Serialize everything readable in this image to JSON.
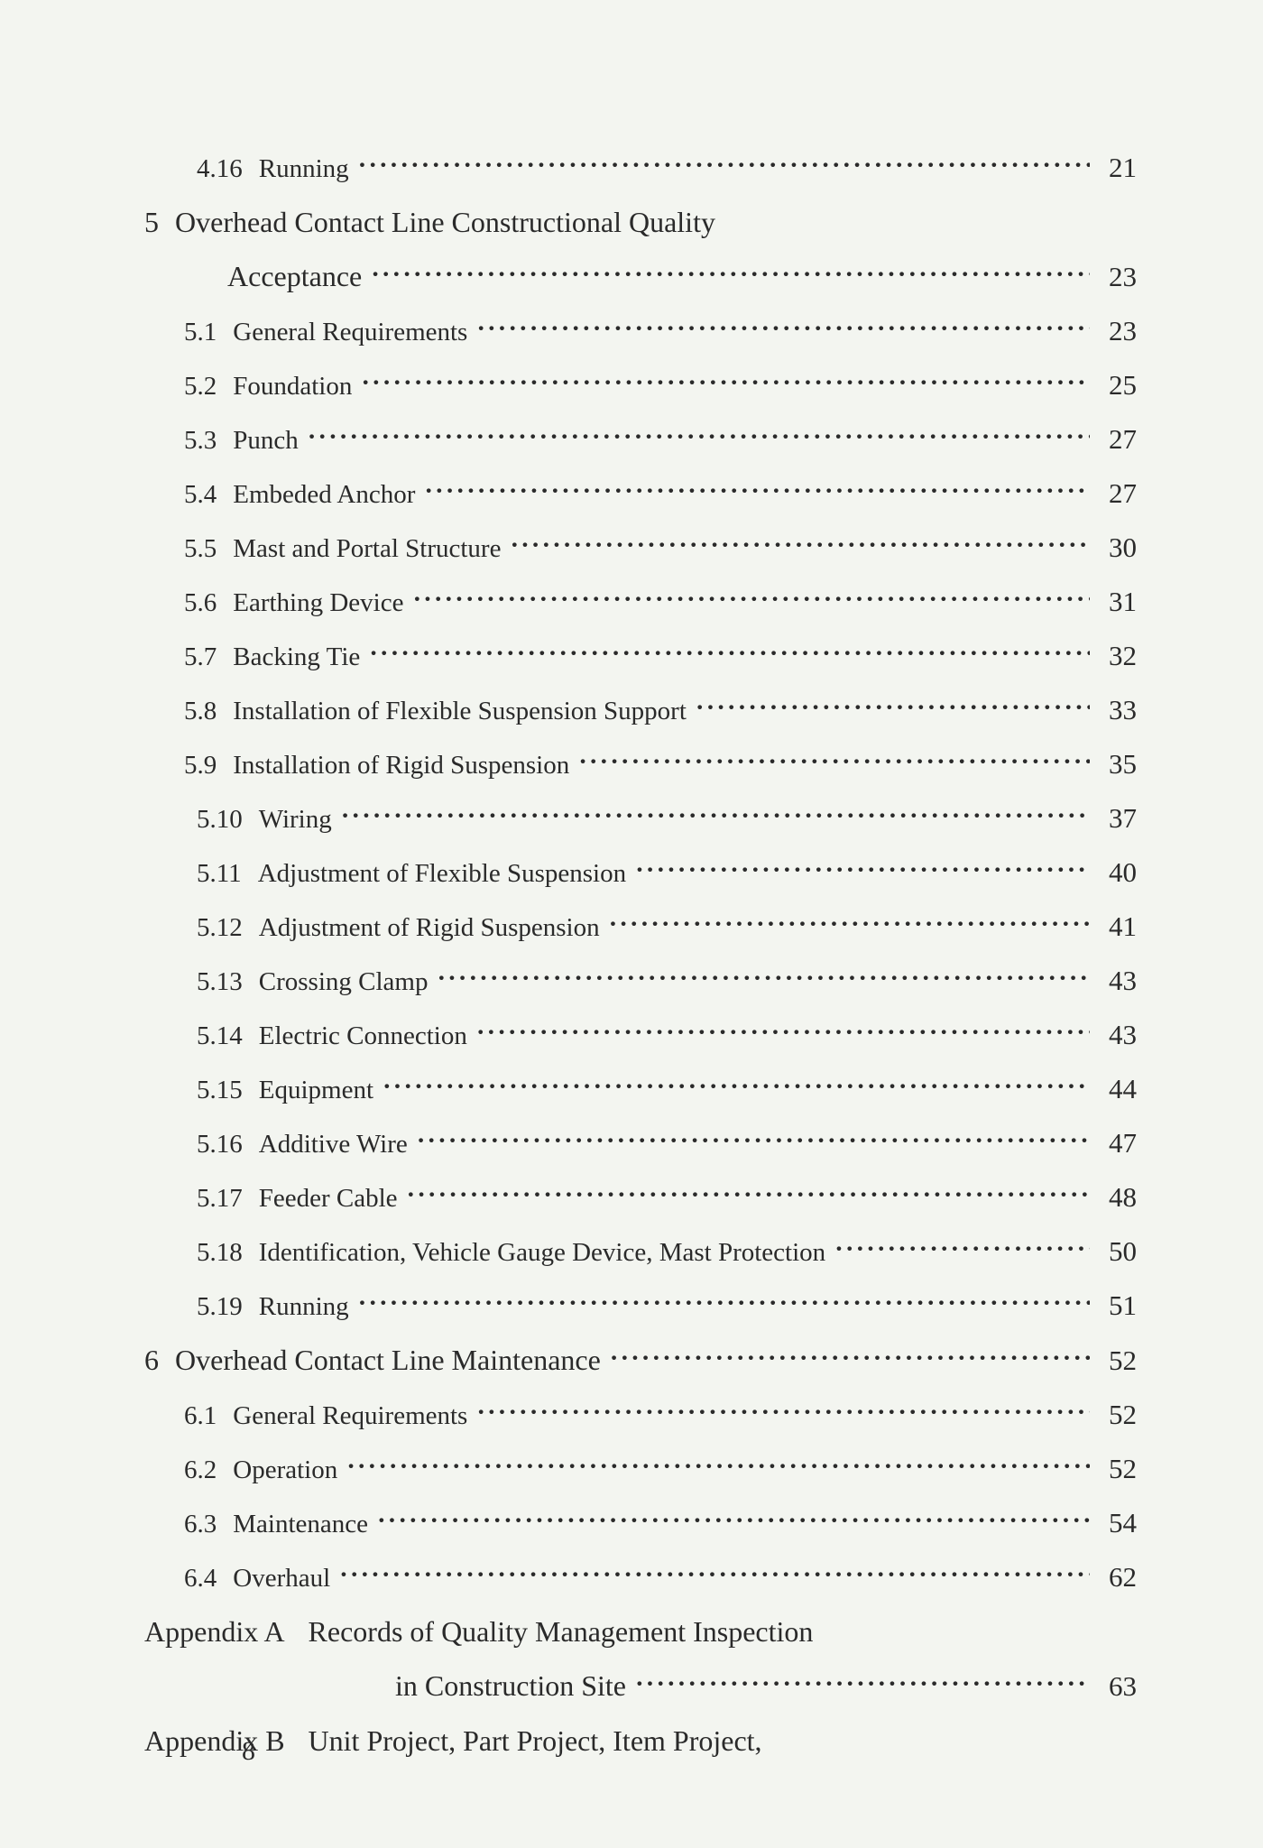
{
  "toc": {
    "rows": [
      {
        "level": 2,
        "num": "4.16",
        "title": "Running",
        "page": "21"
      },
      {
        "level": 0,
        "num": "5",
        "title": "Overhead Contact Line Constructional Quality",
        "noDots": true,
        "noPage": true
      },
      {
        "level": "cont",
        "title": "Acceptance",
        "page": "23",
        "big": true
      },
      {
        "level": 1,
        "num": "5.1",
        "title": "General Requirements",
        "page": "23"
      },
      {
        "level": 1,
        "num": "5.2",
        "title": "Foundation",
        "page": "25"
      },
      {
        "level": 1,
        "num": "5.3",
        "title": "Punch",
        "page": "27"
      },
      {
        "level": 1,
        "num": "5.4",
        "title": "Embeded Anchor",
        "page": "27"
      },
      {
        "level": 1,
        "num": "5.5",
        "title": "Mast and Portal Structure",
        "page": "30"
      },
      {
        "level": 1,
        "num": "5.6",
        "title": "Earthing Device",
        "page": "31"
      },
      {
        "level": 1,
        "num": "5.7",
        "title": "Backing Tie",
        "page": "32"
      },
      {
        "level": 1,
        "num": "5.8",
        "title": "Installation of Flexible Suspension Support",
        "page": "33"
      },
      {
        "level": 1,
        "num": "5.9",
        "title": "Installation of Rigid Suspension",
        "page": "35"
      },
      {
        "level": 2,
        "num": "5.10",
        "title": "Wiring",
        "page": "37"
      },
      {
        "level": 2,
        "num": "5.11",
        "title": "Adjustment of Flexible Suspension",
        "page": "40"
      },
      {
        "level": 2,
        "num": "5.12",
        "title": "Adjustment of Rigid Suspension",
        "page": "41"
      },
      {
        "level": 2,
        "num": "5.13",
        "title": "Crossing Clamp",
        "page": "43"
      },
      {
        "level": 2,
        "num": "5.14",
        "title": "Electric Connection",
        "page": "43"
      },
      {
        "level": 2,
        "num": "5.15",
        "title": "Equipment",
        "page": "44"
      },
      {
        "level": 2,
        "num": "5.16",
        "title": "Additive Wire",
        "page": "47"
      },
      {
        "level": 2,
        "num": "5.17",
        "title": "Feeder Cable",
        "page": "48"
      },
      {
        "level": 2,
        "num": "5.18",
        "title": "Identification,  Vehicle Gauge Device,  Mast Protection",
        "page": "50"
      },
      {
        "level": 2,
        "num": "5.19",
        "title": "Running",
        "page": "51"
      },
      {
        "level": 0,
        "num": "6",
        "title": "Overhead Contact Line Maintenance",
        "page": "52"
      },
      {
        "level": 1,
        "num": "6.1",
        "title": "General Requirements",
        "page": "52"
      },
      {
        "level": 1,
        "num": "6.2",
        "title": "Operation",
        "page": "52"
      },
      {
        "level": 1,
        "num": "6.3",
        "title": "Maintenance",
        "page": "54"
      },
      {
        "level": 1,
        "num": "6.4",
        "title": "Overhaul",
        "page": "62"
      },
      {
        "level": "apx",
        "num": "Appendix A",
        "title": "Records of Quality Management Inspection",
        "noDots": true,
        "noPage": true
      },
      {
        "level": "cont2",
        "title": "in Construction Site",
        "page": "63",
        "big": true
      },
      {
        "level": "apx",
        "num": "Appendix B",
        "title": "Unit Project,  Part Project,  Item Project,",
        "noDots": true,
        "noPage": true
      }
    ],
    "pageNumber": "8"
  }
}
